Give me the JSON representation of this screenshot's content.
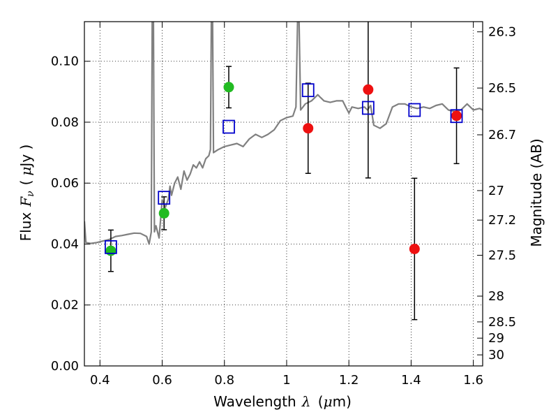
{
  "chart_data": {
    "type": "scatter",
    "xlabel": "Wavelength  λ (μm)",
    "ylabel_left": "Flux  F_ν  ( μJy )",
    "ylabel_right": "Magnitude (AB)",
    "xlim": [
      0.35,
      1.63
    ],
    "ylim": [
      0.0,
      0.113
    ],
    "grid": true,
    "x_ticks": [
      0.4,
      0.6,
      0.8,
      1.0,
      1.2,
      1.4,
      1.6
    ],
    "x_tick_labels": [
      "0.4",
      "0.6",
      "0.8",
      "1",
      "1.2",
      "1.4",
      "1.6"
    ],
    "y_ticks": [
      0.0,
      0.02,
      0.04,
      0.06,
      0.08,
      0.1
    ],
    "y_tick_labels": [
      "0.00",
      "0.02",
      "0.04",
      "0.06",
      "0.08",
      "0.10"
    ],
    "mag_ticks": [
      {
        "mag": 26.3,
        "label": "26.3"
      },
      {
        "mag": 26.5,
        "label": "26.5"
      },
      {
        "mag": 26.7,
        "label": "26.7"
      },
      {
        "mag": 27.0,
        "label": "27"
      },
      {
        "mag": 27.2,
        "label": "27.2"
      },
      {
        "mag": 27.5,
        "label": "27.5"
      },
      {
        "mag": 28.0,
        "label": "28"
      },
      {
        "mag": 28.5,
        "label": "28.5"
      },
      {
        "mag": 29.0,
        "label": "29"
      },
      {
        "mag": 30.0,
        "label": "30"
      }
    ],
    "colors": {
      "green": "#22bb22",
      "red": "#ee1111",
      "blue": "#0000cc",
      "model": "#808080",
      "errorbar": "#000000"
    },
    "series": [
      {
        "marker": "circle-green",
        "points": [
          {
            "x": 0.435,
            "y": 0.0378,
            "yerr": 0.0068
          },
          {
            "x": 0.606,
            "y": 0.0501,
            "yerr": 0.0054
          },
          {
            "x": 0.814,
            "y": 0.0915,
            "yerr": 0.0068
          }
        ]
      },
      {
        "marker": "circle-red",
        "points": [
          {
            "x": 1.069,
            "y": 0.078,
            "yerr": 0.0148
          },
          {
            "x": 1.262,
            "y": 0.0907,
            "yerr": 0.029
          },
          {
            "x": 1.411,
            "y": 0.0384,
            "yerr": 0.0232
          },
          {
            "x": 1.546,
            "y": 0.0821,
            "yerr": 0.0157
          }
        ]
      },
      {
        "marker": "square-blue",
        "points": [
          {
            "x": 0.435,
            "y": 0.039
          },
          {
            "x": 0.606,
            "y": 0.0552
          },
          {
            "x": 0.814,
            "y": 0.0785
          },
          {
            "x": 1.069,
            "y": 0.0905
          },
          {
            "x": 1.262,
            "y": 0.0847
          },
          {
            "x": 1.411,
            "y": 0.084
          },
          {
            "x": 1.546,
            "y": 0.082
          }
        ]
      },
      {
        "marker": "line-gray",
        "points": [
          [
            0.35,
            0.0475
          ],
          [
            0.355,
            0.0405
          ],
          [
            0.37,
            0.0402
          ],
          [
            0.39,
            0.0405
          ],
          [
            0.41,
            0.041
          ],
          [
            0.43,
            0.0415
          ],
          [
            0.45,
            0.0425
          ],
          [
            0.47,
            0.0428
          ],
          [
            0.49,
            0.0432
          ],
          [
            0.51,
            0.0436
          ],
          [
            0.53,
            0.0435
          ],
          [
            0.55,
            0.0425
          ],
          [
            0.558,
            0.04
          ],
          [
            0.565,
            0.044
          ],
          [
            0.568,
            0.113
          ],
          [
            0.572,
            0.113
          ],
          [
            0.575,
            0.044
          ],
          [
            0.58,
            0.046
          ],
          [
            0.59,
            0.042
          ],
          [
            0.6,
            0.0545
          ],
          [
            0.61,
            0.052
          ],
          [
            0.62,
            0.0548
          ],
          [
            0.625,
            0.059
          ],
          [
            0.63,
            0.056
          ],
          [
            0.64,
            0.06
          ],
          [
            0.65,
            0.062
          ],
          [
            0.66,
            0.058
          ],
          [
            0.67,
            0.064
          ],
          [
            0.68,
            0.061
          ],
          [
            0.69,
            0.063
          ],
          [
            0.7,
            0.066
          ],
          [
            0.71,
            0.065
          ],
          [
            0.72,
            0.067
          ],
          [
            0.73,
            0.065
          ],
          [
            0.74,
            0.068
          ],
          [
            0.75,
            0.069
          ],
          [
            0.755,
            0.071
          ],
          [
            0.758,
            0.113
          ],
          [
            0.762,
            0.113
          ],
          [
            0.765,
            0.07
          ],
          [
            0.78,
            0.071
          ],
          [
            0.8,
            0.072
          ],
          [
            0.82,
            0.0725
          ],
          [
            0.84,
            0.073
          ],
          [
            0.86,
            0.072
          ],
          [
            0.88,
            0.0745
          ],
          [
            0.9,
            0.076
          ],
          [
            0.92,
            0.075
          ],
          [
            0.94,
            0.076
          ],
          [
            0.96,
            0.0775
          ],
          [
            0.98,
            0.0805
          ],
          [
            1.0,
            0.0815
          ],
          [
            1.02,
            0.082
          ],
          [
            1.03,
            0.085
          ],
          [
            1.035,
            0.113
          ],
          [
            1.04,
            0.113
          ],
          [
            1.045,
            0.084
          ],
          [
            1.06,
            0.086
          ],
          [
            1.08,
            0.087
          ],
          [
            1.09,
            0.088
          ],
          [
            1.1,
            0.089
          ],
          [
            1.11,
            0.088
          ],
          [
            1.12,
            0.087
          ],
          [
            1.14,
            0.0865
          ],
          [
            1.16,
            0.087
          ],
          [
            1.18,
            0.087
          ],
          [
            1.19,
            0.085
          ],
          [
            1.2,
            0.083
          ],
          [
            1.21,
            0.085
          ],
          [
            1.23,
            0.0845
          ],
          [
            1.25,
            0.085
          ],
          [
            1.26,
            0.084
          ],
          [
            1.27,
            0.0855
          ],
          [
            1.28,
            0.079
          ],
          [
            1.3,
            0.078
          ],
          [
            1.32,
            0.0795
          ],
          [
            1.34,
            0.085
          ],
          [
            1.36,
            0.086
          ],
          [
            1.38,
            0.086
          ],
          [
            1.4,
            0.085
          ],
          [
            1.42,
            0.0845
          ],
          [
            1.44,
            0.085
          ],
          [
            1.46,
            0.0845
          ],
          [
            1.48,
            0.0855
          ],
          [
            1.5,
            0.086
          ],
          [
            1.52,
            0.084
          ],
          [
            1.54,
            0.0835
          ],
          [
            1.56,
            0.084
          ],
          [
            1.58,
            0.086
          ],
          [
            1.6,
            0.084
          ],
          [
            1.62,
            0.0845
          ],
          [
            1.63,
            0.084
          ]
        ]
      }
    ]
  }
}
